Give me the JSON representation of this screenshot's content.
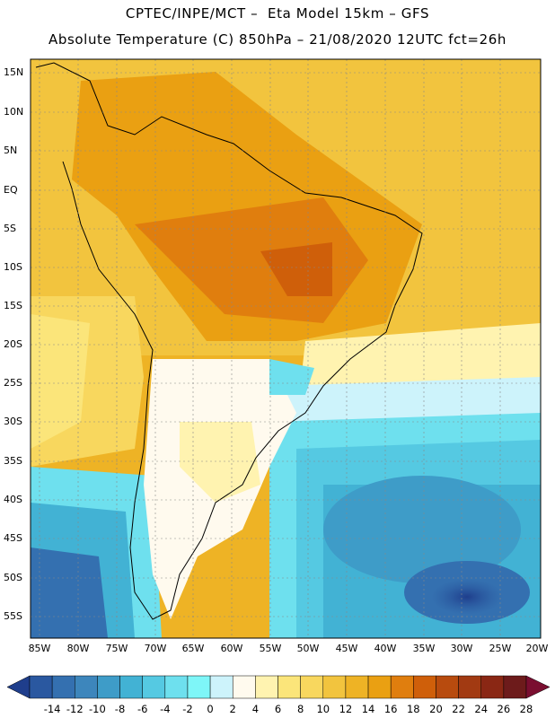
{
  "header": {
    "line1": "CPTEC/INPE/MCT –  Eta Model 15km – GFS",
    "line2": "Absolute Temperature (C) 850hPa – 21/08/2020 12UTC fct=26h"
  },
  "map": {
    "lat_labels": [
      "15N",
      "10N",
      "5N",
      "EQ",
      "5S",
      "10S",
      "15S",
      "20S",
      "25S",
      "30S",
      "35S",
      "40S",
      "45S",
      "50S",
      "55S"
    ],
    "lon_labels": [
      "85W",
      "80W",
      "75W",
      "70W",
      "65W",
      "60W",
      "55W",
      "50W",
      "45W",
      "40W",
      "35W",
      "30W",
      "25W",
      "20W"
    ]
  },
  "colorbar": {
    "labels": [
      "-14",
      "-12",
      "-10",
      "-8",
      "-6",
      "-4",
      "-2",
      "0",
      "2",
      "4",
      "6",
      "8",
      "10",
      "12",
      "14",
      "16",
      "18",
      "20",
      "22",
      "24",
      "26",
      "28"
    ],
    "colors": [
      "#1f3e8c",
      "#2a58a0",
      "#3470b0",
      "#3d86bc",
      "#3e9cc8",
      "#42b2d4",
      "#55c9e2",
      "#6ee0ee",
      "#7ef6f8",
      "#cdf3fb",
      "#fffaee",
      "#fff3b0",
      "#fbe57a",
      "#f8d75e",
      "#f2c43e",
      "#eeb325",
      "#eaa012",
      "#e07e0e",
      "#cf5f0a",
      "#b84b0e",
      "#a23a12",
      "#8a2714",
      "#6d1b1b",
      "#7a0e30"
    ]
  }
}
